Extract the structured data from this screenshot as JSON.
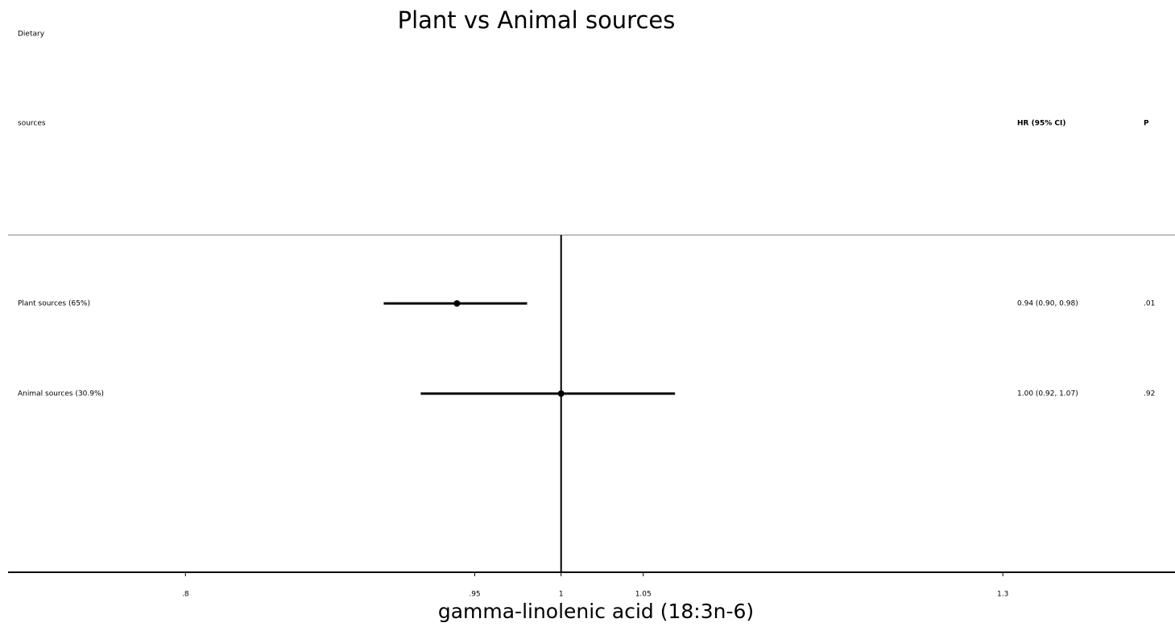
{
  "chart_data": {
    "type": "forest",
    "title": "Plant vs Animal sources",
    "xlabel": "gamma-linolenic acid (18:3n-6)",
    "header": {
      "label_lines": [
        "Dietary",
        "sources"
      ],
      "hr": "HR (95% CI)",
      "p": "P"
    },
    "categories": [
      "Plant sources (65%)",
      "Animal sources (30.9%)"
    ],
    "values": [
      0.94,
      1.0
    ],
    "lower": [
      0.9,
      0.92
    ],
    "upper": [
      0.98,
      1.07
    ],
    "value_labels": [
      "0.94 (0.90, 0.98)",
      "1.00 (0.92, 1.07)"
    ],
    "p_values": [
      ".01",
      ".92"
    ],
    "xlim": [
      0.72,
      1.44
    ],
    "xticks": [
      {
        "value": 0.8,
        "label": ".8"
      },
      {
        "value": 0.95,
        "label": ".95"
      },
      1,
      1.05,
      1.3
    ],
    "log_scale": true,
    "reference_line": 1,
    "color": "#000000"
  }
}
